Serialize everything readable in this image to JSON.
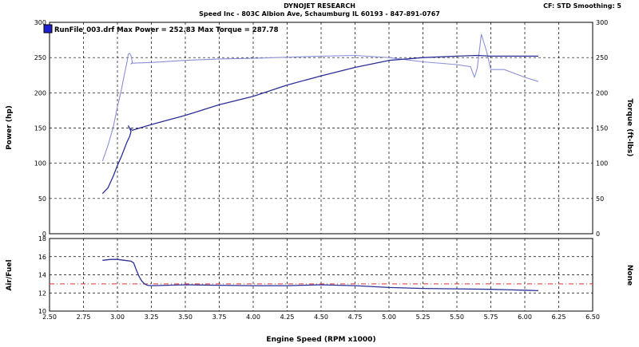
{
  "header": {
    "company": "DYNOJET RESEARCH",
    "address": "Speed Inc - 803C Albion Ave, Schaumburg IL 60193 - 847-891-0767",
    "settings": "CF: STD  Smoothing: 5"
  },
  "colors": {
    "power": "#2a2f96",
    "torque": "#8a90d8",
    "reference": "#e03030",
    "legend_swatch": "#1f1fd0"
  },
  "chart_data": [
    {
      "type": "line",
      "legend": "RunFile_003.drf Max Power = 252.83    Max Torque = 287.78",
      "xlabel": "Engine Speed (RPM x1000)",
      "ylabel": "Power (hp)",
      "y2label": "Torque (ft-lbs)",
      "xlim": [
        2.5,
        6.5
      ],
      "ylim": [
        0,
        300
      ],
      "y2lim": [
        0,
        300
      ],
      "x_ticks": [
        "2.50",
        "2.75",
        "3.00",
        "3.25",
        "3.50",
        "3.75",
        "4.00",
        "4.25",
        "4.50",
        "4.75",
        "5.00",
        "5.25",
        "5.50",
        "5.75",
        "6.00",
        "6.25",
        "6.50"
      ],
      "y_ticks": [
        "0",
        "50",
        "100",
        "150",
        "200",
        "250",
        "300"
      ],
      "y2_ticks": [
        "0",
        "50",
        "100",
        "150",
        "200",
        "250",
        "300"
      ],
      "grid": true,
      "series": [
        {
          "axis": "left",
          "x": [
            2.89,
            2.93,
            2.97,
            3.0,
            3.03,
            3.05,
            3.07,
            3.09,
            3.1,
            3.09,
            3.08,
            3.09,
            3.11,
            3.13,
            3.25,
            3.5,
            3.75,
            4.0,
            4.25,
            4.5,
            4.75,
            5.0,
            5.25,
            5.5,
            5.65,
            5.75,
            6.0,
            6.1
          ],
          "values": [
            57,
            65,
            82,
            97,
            110,
            120,
            130,
            138,
            145,
            150,
            153,
            150,
            147,
            148,
            155,
            168,
            183,
            195,
            211,
            224,
            236,
            246,
            250,
            252,
            253,
            252,
            252,
            252
          ]
        },
        {
          "axis": "right",
          "x": [
            2.89,
            2.93,
            2.97,
            3.0,
            3.03,
            3.05,
            3.07,
            3.08,
            3.09,
            3.1,
            3.11,
            3.1,
            3.11,
            3.25,
            3.5,
            3.75,
            4.0,
            4.5,
            4.75,
            5.0,
            5.25,
            5.5,
            5.6,
            5.63,
            5.65,
            5.68,
            5.72,
            5.75,
            5.85,
            6.0,
            6.1
          ],
          "values": [
            103,
            125,
            152,
            180,
            205,
            225,
            243,
            255,
            256,
            253,
            243,
            241,
            242,
            243,
            246,
            248,
            249,
            252,
            253,
            250,
            244,
            240,
            237,
            222,
            235,
            283,
            258,
            233,
            233,
            222,
            216
          ]
        }
      ]
    },
    {
      "type": "line",
      "ylabel": "Air/Fuel",
      "y2label": "None",
      "xlim": [
        2.5,
        6.5
      ],
      "ylim": [
        10,
        18
      ],
      "y_ticks": [
        "10",
        "12",
        "14",
        "16",
        "18"
      ],
      "grid": true,
      "reference_line": 13.0,
      "series": [
        {
          "x": [
            2.89,
            2.95,
            3.0,
            3.05,
            3.1,
            3.12,
            3.14,
            3.16,
            3.18,
            3.2,
            3.22,
            3.25,
            3.5,
            3.75,
            4.0,
            4.25,
            4.5,
            4.75,
            5.0,
            5.25,
            5.5,
            5.75,
            6.0,
            6.1
          ],
          "values": [
            15.6,
            15.7,
            15.7,
            15.6,
            15.5,
            15.3,
            14.5,
            13.8,
            13.3,
            13.0,
            12.85,
            12.8,
            12.9,
            12.85,
            12.8,
            12.8,
            12.9,
            12.8,
            12.6,
            12.5,
            12.45,
            12.4,
            12.3,
            12.25
          ]
        }
      ]
    }
  ]
}
